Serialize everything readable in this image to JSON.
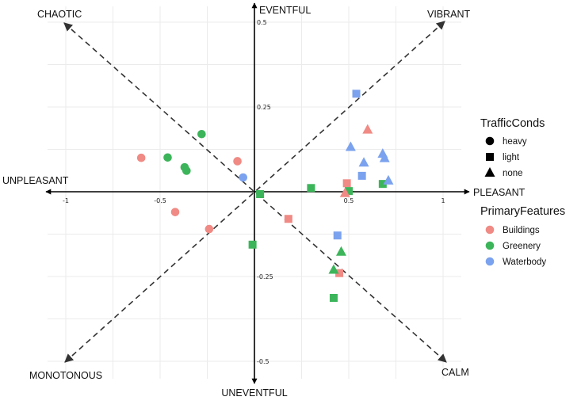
{
  "chart_data": {
    "type": "scatter",
    "xlim": [
      -1.1,
      1.1
    ],
    "ylim": [
      -0.55,
      0.55
    ],
    "grid": true,
    "legend_position": "right",
    "x_ticks": [
      {
        "value": -1,
        "label": "-1"
      },
      {
        "value": -0.5,
        "label": "-0.5"
      },
      {
        "value": 0.5,
        "label": "0.5"
      },
      {
        "value": 1,
        "label": "1"
      }
    ],
    "y_ticks": [
      {
        "value": 0.5,
        "label": "0.5"
      },
      {
        "value": 0.25,
        "label": "0.25"
      },
      {
        "value": -0.25,
        "label": "-0.25"
      },
      {
        "value": -0.5,
        "label": "-0.5"
      }
    ],
    "direction_labels": {
      "eventful": "EVENTFUL",
      "uneventful": "UNEVENTFUL",
      "pleasant": "PLEASANT",
      "unpleasant": "UNPLEASANT",
      "vibrant": "VIBRANT",
      "chaotic": "CHAOTIC",
      "calm": "CALM",
      "monotonous": "MONOTONOUS"
    },
    "shape_legend": {
      "title": "TrafficConds",
      "items": [
        {
          "label": "heavy",
          "shape": "circle"
        },
        {
          "label": "light",
          "shape": "square"
        },
        {
          "label": "none",
          "shape": "triangle"
        }
      ]
    },
    "color_legend": {
      "title": "PrimaryFeatures",
      "items": [
        {
          "label": "Buildings",
          "color": "#F08A84"
        },
        {
          "label": "Greenery",
          "color": "#3CB55A"
        },
        {
          "label": "Waterbody",
          "color": "#7BA2EE"
        }
      ]
    },
    "points": [
      {
        "x": -0.6,
        "y": 0.1,
        "feature": "Buildings",
        "traffic": "heavy"
      },
      {
        "x": -0.42,
        "y": -0.06,
        "feature": "Buildings",
        "traffic": "heavy"
      },
      {
        "x": -0.24,
        "y": -0.11,
        "feature": "Buildings",
        "traffic": "heavy"
      },
      {
        "x": -0.09,
        "y": 0.09,
        "feature": "Buildings",
        "traffic": "heavy"
      },
      {
        "x": -0.28,
        "y": 0.17,
        "feature": "Greenery",
        "traffic": "heavy"
      },
      {
        "x": -0.46,
        "y": 0.101,
        "feature": "Greenery",
        "traffic": "heavy"
      },
      {
        "x": -0.37,
        "y": 0.072,
        "feature": "Greenery",
        "traffic": "heavy"
      },
      {
        "x": -0.36,
        "y": 0.062,
        "feature": "Greenery",
        "traffic": "heavy"
      },
      {
        "x": -0.06,
        "y": 0.042,
        "feature": "Waterbody",
        "traffic": "heavy"
      },
      {
        "x": 0.18,
        "y": -0.08,
        "feature": "Buildings",
        "traffic": "light"
      },
      {
        "x": 0.49,
        "y": 0.025,
        "feature": "Buildings",
        "traffic": "light"
      },
      {
        "x": 0.45,
        "y": -0.24,
        "feature": "Buildings",
        "traffic": "light"
      },
      {
        "x": 0.03,
        "y": -0.007,
        "feature": "Greenery",
        "traffic": "light"
      },
      {
        "x": -0.01,
        "y": -0.156,
        "feature": "Greenery",
        "traffic": "light"
      },
      {
        "x": 0.3,
        "y": 0.011,
        "feature": "Greenery",
        "traffic": "light"
      },
      {
        "x": 0.5,
        "y": 0.002,
        "feature": "Greenery",
        "traffic": "light"
      },
      {
        "x": 0.68,
        "y": 0.023,
        "feature": "Greenery",
        "traffic": "light"
      },
      {
        "x": 0.42,
        "y": -0.313,
        "feature": "Greenery",
        "traffic": "light"
      },
      {
        "x": 0.54,
        "y": 0.289,
        "feature": "Waterbody",
        "traffic": "light"
      },
      {
        "x": 0.57,
        "y": 0.047,
        "feature": "Waterbody",
        "traffic": "light"
      },
      {
        "x": 0.44,
        "y": -0.129,
        "feature": "Waterbody",
        "traffic": "light"
      },
      {
        "x": 0.6,
        "y": 0.183,
        "feature": "Buildings",
        "traffic": "none"
      },
      {
        "x": 0.48,
        "y": -0.004,
        "feature": "Buildings",
        "traffic": "none"
      },
      {
        "x": 0.46,
        "y": -0.177,
        "feature": "Greenery",
        "traffic": "none"
      },
      {
        "x": 0.42,
        "y": -0.23,
        "feature": "Greenery",
        "traffic": "none"
      },
      {
        "x": 0.51,
        "y": 0.132,
        "feature": "Waterbody",
        "traffic": "none"
      },
      {
        "x": 0.58,
        "y": 0.086,
        "feature": "Waterbody",
        "traffic": "none"
      },
      {
        "x": 0.68,
        "y": 0.112,
        "feature": "Waterbody",
        "traffic": "none"
      },
      {
        "x": 0.69,
        "y": 0.099,
        "feature": "Waterbody",
        "traffic": "none"
      },
      {
        "x": 0.71,
        "y": 0.033,
        "feature": "Waterbody",
        "traffic": "none"
      }
    ]
  }
}
